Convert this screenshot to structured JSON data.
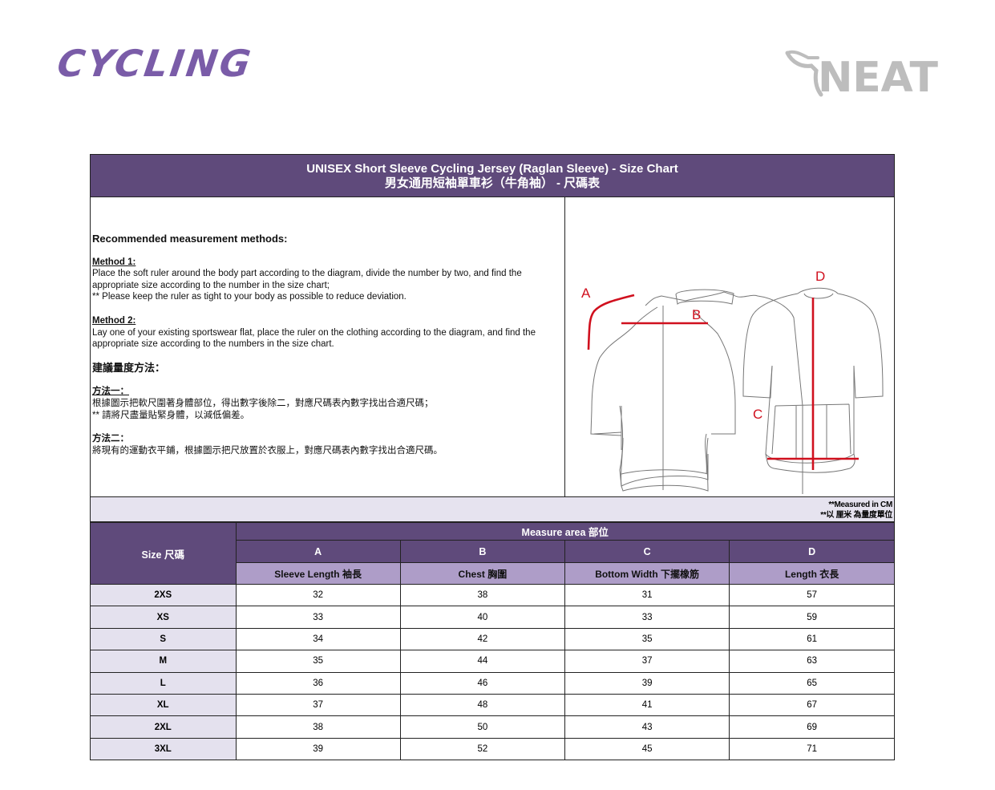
{
  "brand": {
    "left_logo": "CYCLING",
    "right_logo": "NEAT"
  },
  "title": {
    "en": "UNISEX Short Sleeve Cycling Jersey (Raglan Sleeve) - Size Chart",
    "zh": "男女通用短袖單車衫（牛角袖） - 尺碼表"
  },
  "methods": {
    "heading": "Recommended measurement methods:",
    "method1_label": "Method 1:",
    "method1_line1": "Place the soft ruler around the body part according to the diagram, divide the number by two, and find the",
    "method1_line2": "appropriate size according to the number in the size chart;",
    "method1_note": "** Please keep the ruler as tight to your body as possible to reduce deviation.",
    "method2_label": "Method 2:",
    "method2_line1": "Lay one of your existing sportswear flat, place the ruler on the clothing according to the diagram, and find the",
    "method2_line2": "appropriate size according to the numbers in the size chart.",
    "zh_heading": "建議量度方法：",
    "zh_method1_label": "方法一：",
    "zh_method1_line": "根據圖示把軟尺圍著身體部位，得出數字後除二，對應尺碼表內數字找出合適尺碼；",
    "zh_method1_note": "** 請將尺盡量貼緊身體，以減低偏差。",
    "zh_method2_label": "方法二：",
    "zh_method2_line": "將現有的運動衣平鋪，根據圖示把尺放置於衣服上，對應尺碼表內數字找出合適尺碼。"
  },
  "diagram": {
    "labels": [
      "A",
      "B",
      "C",
      "D"
    ],
    "accent_color": "#d0101e"
  },
  "note": {
    "en": "**Measured in CM",
    "zh": "**以 厘米 為量度單位"
  },
  "table": {
    "size_header": "Size 尺碼",
    "measure_header": "Measure area 部位",
    "columns": [
      {
        "letter": "A",
        "name": "Sleeve Length 袖長"
      },
      {
        "letter": "B",
        "name": "Chest 胸圍"
      },
      {
        "letter": "C",
        "name": "Bottom Width 下擺橡筋"
      },
      {
        "letter": "D",
        "name": "Length 衣長"
      }
    ],
    "rows": [
      {
        "size": "2XS",
        "values": [
          "32",
          "38",
          "31",
          "57"
        ]
      },
      {
        "size": "XS",
        "values": [
          "33",
          "40",
          "33",
          "59"
        ]
      },
      {
        "size": "S",
        "values": [
          "34",
          "42",
          "35",
          "61"
        ]
      },
      {
        "size": "M",
        "values": [
          "35",
          "44",
          "37",
          "63"
        ]
      },
      {
        "size": "L",
        "values": [
          "36",
          "46",
          "39",
          "65"
        ]
      },
      {
        "size": "XL",
        "values": [
          "37",
          "48",
          "41",
          "67"
        ]
      },
      {
        "size": "2XL",
        "values": [
          "38",
          "50",
          "43",
          "69"
        ]
      },
      {
        "size": "3XL",
        "values": [
          "39",
          "52",
          "45",
          "71"
        ]
      }
    ]
  },
  "colors": {
    "header": "#5f4a7b",
    "subheader": "#ae9dc8",
    "light": "#e4e1ee",
    "logo": "#7a5ca8"
  }
}
